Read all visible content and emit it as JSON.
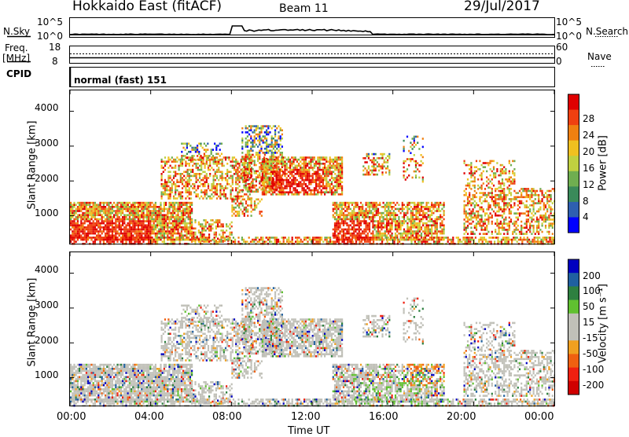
{
  "header": {
    "station": "Hokkaido East (fitACF)",
    "beam": "Beam 11",
    "date": "29/Jul/2017"
  },
  "strip": {
    "nsky_label": "N.Sky",
    "nsearch_label": "N.Search",
    "noise_ticks": [
      "10^5",
      "10^0"
    ],
    "freq_label": "Freq.",
    "freq_unit": "[MHz]",
    "freq_ticks": [
      "18",
      "8"
    ],
    "nave_label": "Nave",
    "nave_ticks": [
      "60",
      "0"
    ],
    "cpid_label": "CPID",
    "cpid_value": "normal (fast) 151"
  },
  "colors": {
    "power_scale": [
      "#0000ff",
      "#2e5fb0",
      "#3a8a5a",
      "#6fae50",
      "#c0d040",
      "#f0c020",
      "#f08010",
      "#f04010",
      "#e00000"
    ],
    "velocity_scale": [
      "#0000c0",
      "#2060a0",
      "#2e8040",
      "#60c030",
      "#c0c0b8",
      "#c0c0b8",
      "#f0a020",
      "#f06010",
      "#f02010",
      "#d00000"
    ]
  },
  "chart_data": [
    {
      "type": "heatmap",
      "title": "",
      "xlabel": "Time UT",
      "ylabel": "Slant Range [km]",
      "x_ticks": [
        "00:00",
        "04:00",
        "08:00",
        "12:00",
        "16:00",
        "20:00",
        "00:00"
      ],
      "y_ticks": [
        "1000",
        "2000",
        "3000",
        "4000"
      ],
      "xlim": [
        0,
        24
      ],
      "ylim": [
        200,
        4600
      ],
      "colorbar": {
        "label": "Power [dB]",
        "ticks": [
          "4",
          "8",
          "12",
          "16",
          "20",
          "24",
          "28"
        ],
        "range": [
          0,
          30
        ]
      }
    },
    {
      "type": "heatmap",
      "title": "",
      "xlabel": "Time UT",
      "ylabel": "Slant Range [km]",
      "x_ticks": [
        "00:00",
        "04:00",
        "08:00",
        "12:00",
        "16:00",
        "20:00",
        "00:00"
      ],
      "y_ticks": [
        "1000",
        "2000",
        "3000",
        "4000"
      ],
      "xlim": [
        0,
        24
      ],
      "ylim": [
        200,
        4600
      ],
      "colorbar": {
        "label": "Velocity [m s⁻¹]",
        "ticks": [
          "200",
          "100",
          "50",
          "15",
          "-15",
          "-50",
          "-100",
          "-200"
        ],
        "range": [
          -250,
          250
        ]
      }
    }
  ]
}
